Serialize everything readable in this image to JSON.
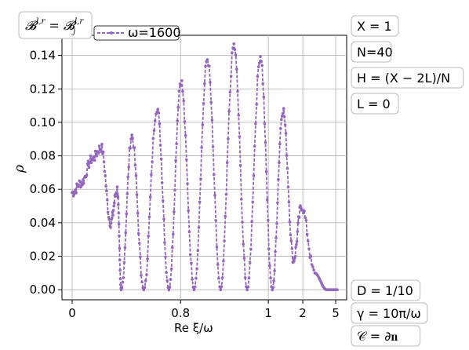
{
  "chart_data": {
    "type": "line",
    "title": "",
    "xlabel": "Re ξ/ω",
    "ylabel": "ρ",
    "grid": true,
    "legend_position": "top-left",
    "ylim": [
      -0.006,
      0.152
    ],
    "x_tick_labels": [
      "0",
      "0.8",
      "1",
      "2",
      "5"
    ],
    "y_tick_labels": [
      "0.00",
      "0.02",
      "0.04",
      "0.06",
      "0.08",
      "0.10",
      "0.12",
      "0.14"
    ],
    "series": [
      {
        "name": "ω=1600",
        "color": "#9467bd",
        "peaks": [
          {
            "x_frac": 0.0,
            "y": 0.058
          },
          {
            "x_frac": 0.035,
            "y": 0.064
          },
          {
            "x_frac": 0.075,
            "y": 0.078
          },
          {
            "x_frac": 0.11,
            "y": 0.085
          },
          {
            "x_frac": 0.17,
            "y": 0.06
          },
          {
            "x_frac": 0.225,
            "y": 0.092
          },
          {
            "x_frac": 0.32,
            "y": 0.109
          },
          {
            "x_frac": 0.41,
            "y": 0.125
          },
          {
            "x_frac": 0.51,
            "y": 0.138
          },
          {
            "x_frac": 0.61,
            "y": 0.146
          },
          {
            "x_frac": 0.71,
            "y": 0.14
          },
          {
            "x_frac": 0.795,
            "y": 0.108
          },
          {
            "x_frac": 0.865,
            "y": 0.05
          },
          {
            "x_frac": 0.915,
            "y": 0.01
          },
          {
            "x_frac": 0.96,
            "y": 0.0
          },
          {
            "x_frac": 1.0,
            "y": 0.0
          }
        ],
        "valleys": [
          {
            "x_frac": 0.145,
            "y": 0.04
          },
          {
            "x_frac": 0.185,
            "y": 0.0
          },
          {
            "x_frac": 0.27,
            "y": 0.0
          },
          {
            "x_frac": 0.365,
            "y": 0.0
          },
          {
            "x_frac": 0.46,
            "y": 0.0
          },
          {
            "x_frac": 0.56,
            "y": 0.0
          },
          {
            "x_frac": 0.66,
            "y": 0.0
          },
          {
            "x_frac": 0.755,
            "y": 0.0
          },
          {
            "x_frac": 0.835,
            "y": 0.018
          }
        ]
      }
    ]
  },
  "legend": {
    "label": "ω=1600"
  },
  "annotations": {
    "top_left": "ℬ^{l,r} = ℬ_j^{l,r}",
    "right_top": [
      "X = 1",
      "N=40",
      "H = (X − 2L)/N",
      "L = 0"
    ],
    "right_bottom": [
      "D = 1/10",
      "γ = 10π/ω",
      "𝒞 = ∂𝐧"
    ]
  }
}
